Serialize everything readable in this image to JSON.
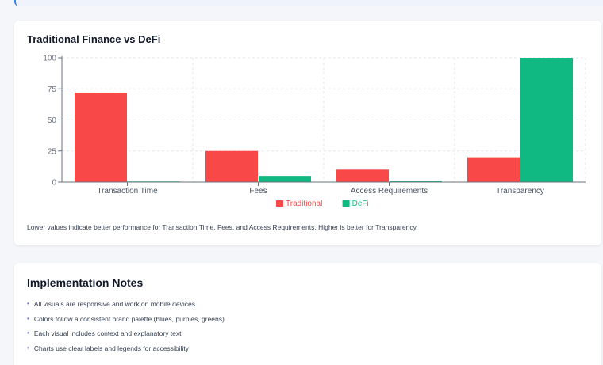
{
  "chart_card": {
    "title": "Traditional Finance vs DeFi",
    "caption": "Lower values indicate better performance for Transaction Time, Fees, and Access Requirements. Higher is better for Transparency."
  },
  "chart_data": {
    "type": "bar",
    "categories": [
      "Transaction Time",
      "Fees",
      "Access Requirements",
      "Transparency"
    ],
    "series": [
      {
        "name": "Traditional",
        "values": [
          72,
          25,
          10,
          20
        ],
        "color": "#f84848"
      },
      {
        "name": "DeFi",
        "values": [
          0.5,
          5,
          1,
          100
        ],
        "color": "#10b981"
      }
    ],
    "y_ticks": [
      0,
      25,
      50,
      75,
      100
    ],
    "ylim": [
      0,
      100
    ],
    "grid": "dashed",
    "legend_position": "bottom-center"
  },
  "notes_card": {
    "title": "Implementation Notes",
    "items": [
      "All visuals are responsive and work on mobile devices",
      "Colors follow a consistent brand palette (blues, purples, greens)",
      "Each visual includes context and explanatory text",
      "Charts use clear labels and legends for accessibility"
    ]
  }
}
